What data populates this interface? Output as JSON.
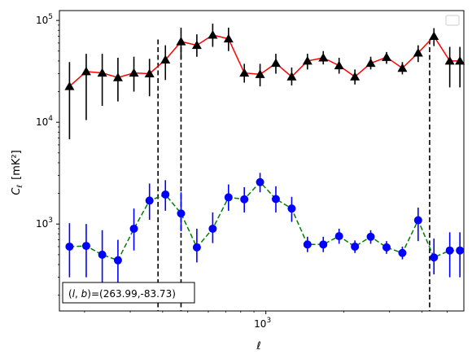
{
  "chart_data": {
    "type": "line",
    "xlabel": "ℓ",
    "ylabel_main": "C",
    "ylabel_sub": "ℓ",
    "ylabel_unit": "[mK²]",
    "xscale": "log",
    "yscale": "log",
    "xlim": [
      160,
      5800
    ],
    "ylim": [
      140,
      125000
    ],
    "x_tick_labels": [
      {
        "value": 1000,
        "base": "10",
        "exp": "3"
      }
    ],
    "y_tick_labels": [
      {
        "value": 1000,
        "base": "10",
        "exp": "3"
      },
      {
        "value": 10000,
        "base": "10",
        "exp": "4"
      },
      {
        "value": 100000,
        "base": "10",
        "exp": "5"
      }
    ],
    "vlines": [
      384,
      471,
      4280
    ],
    "vline_color": "#000000",
    "annotation": "(l, b)=(263.99,-83.73)",
    "legend_placement": "top-right",
    "series": [
      {
        "marker": "triangle",
        "line_color": "#ff0000",
        "marker_color": "#000000",
        "line_style": "solid",
        "x": [
          175,
          203,
          234,
          269,
          310,
          356,
          410,
          471,
          542,
          624,
          718,
          826,
          950,
          1093,
          1258,
          1447,
          1665,
          1916,
          2205,
          2537,
          2920,
          3360,
          3865,
          4447,
          5117,
          5600
        ],
        "y": [
          22500,
          31500,
          30500,
          27500,
          30500,
          30000,
          41000,
          62000,
          57000,
          72000,
          66000,
          30500,
          29500,
          38000,
          28000,
          40000,
          43000,
          36000,
          28000,
          38000,
          43500,
          34000,
          48000,
          70000,
          40000,
          40000
        ],
        "y_low": [
          6800,
          10500,
          14500,
          16000,
          20000,
          18000,
          26000,
          42000,
          44000,
          55000,
          50000,
          24500,
          22500,
          30000,
          23000,
          33000,
          37000,
          30000,
          23500,
          33000,
          37500,
          29500,
          39000,
          56000,
          22000,
          22000
        ],
        "y_high": [
          39000,
          47000,
          47000,
          43000,
          44000,
          42000,
          57000,
          85000,
          73000,
          93000,
          85000,
          37500,
          37500,
          47000,
          34500,
          47000,
          50000,
          43000,
          33000,
          44000,
          49000,
          39000,
          57000,
          84000,
          55000,
          55000
        ]
      },
      {
        "marker": "circle",
        "line_color": "#008000",
        "marker_color": "#0000ff",
        "line_style": "dashed",
        "x": [
          175,
          203,
          234,
          269,
          310,
          356,
          410,
          471,
          542,
          624,
          718,
          826,
          950,
          1093,
          1258,
          1447,
          1665,
          1916,
          2205,
          2537,
          2920,
          3360,
          3865,
          4447,
          5117,
          5600
        ],
        "y": [
          600,
          610,
          500,
          440,
          900,
          1700,
          1950,
          1270,
          590,
          900,
          1830,
          1750,
          2580,
          1760,
          1420,
          630,
          630,
          760,
          600,
          750,
          590,
          520,
          1090,
          470,
          550,
          550
        ],
        "y_low": [
          300,
          300,
          260,
          250,
          550,
          1100,
          1350,
          850,
          420,
          650,
          1350,
          1300,
          2050,
          1300,
          1050,
          530,
          530,
          640,
          520,
          640,
          510,
          450,
          680,
          320,
          300,
          300
        ],
        "y_high": [
          1020,
          1000,
          870,
          700,
          1420,
          2500,
          2700,
          2050,
          900,
          1300,
          2450,
          2300,
          3180,
          2350,
          1850,
          750,
          750,
          900,
          690,
          870,
          680,
          600,
          1450,
          720,
          830,
          830
        ]
      }
    ]
  }
}
